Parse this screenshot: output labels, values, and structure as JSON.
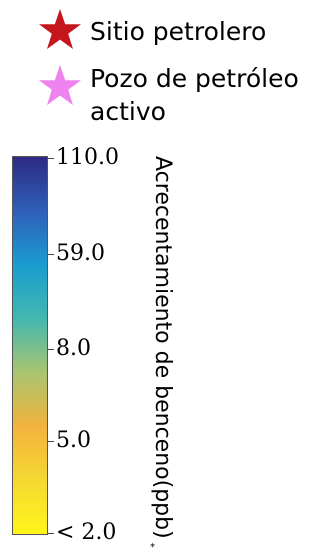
{
  "legend": {
    "items": [
      {
        "label": "Sitio petrolero",
        "icon": "star-icon",
        "color": "#c4161c"
      },
      {
        "label_lines": [
          "Pozo de petróleo",
          "activo"
        ],
        "icon": "star-icon",
        "color": "#ee82ee"
      }
    ]
  },
  "colorbar": {
    "title": "Acrecentamiento de benceno(ppb)",
    "footnote_mark": "*",
    "tick_labels": [
      "110.0",
      "59.0",
      "8.0",
      "5.0",
      "< 2.0"
    ],
    "gradient_colors": [
      "#2e2a82",
      "#2f5fb8",
      "#1a9ccf",
      "#42b8b0",
      "#a8c570",
      "#f2b33d",
      "#f5d832",
      "#fff51a"
    ]
  }
}
